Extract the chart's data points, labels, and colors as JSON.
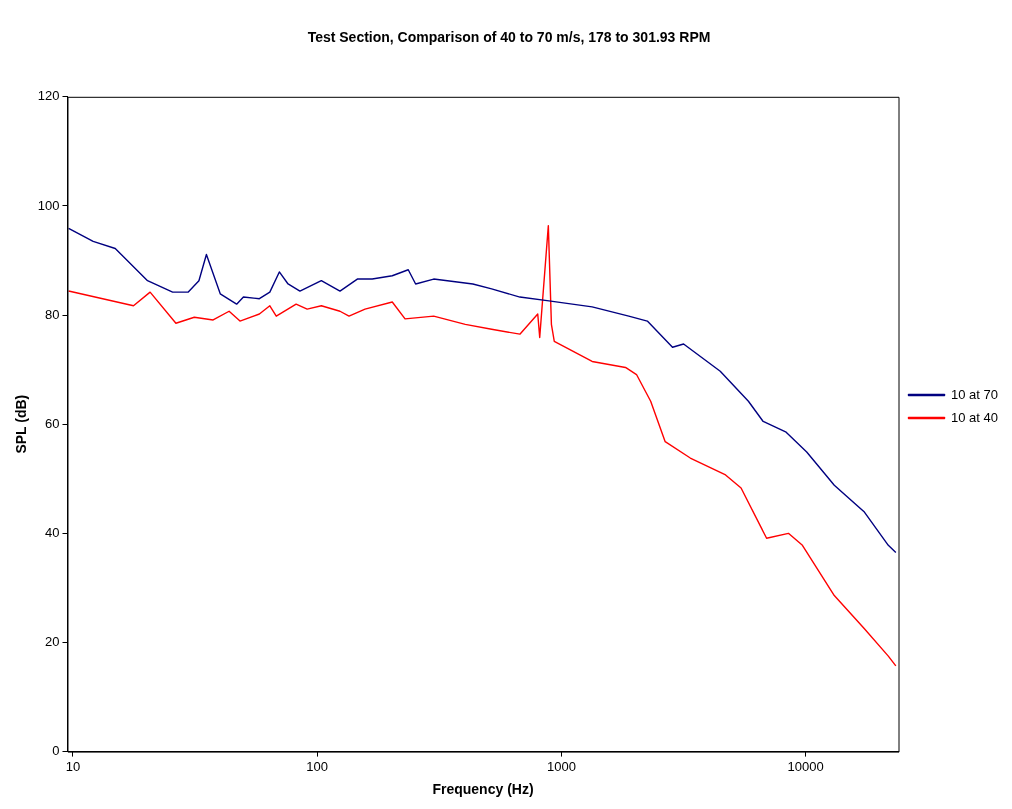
{
  "chart_data": {
    "type": "line",
    "title": "Test Section, Comparison of 40 to 70 m/s, 178 to 301.93 RPM",
    "xlabel": "Frequency (Hz)",
    "ylabel": "SPL (dB)",
    "log": "x",
    "xlim": [
      9.5,
      24000
    ],
    "xticks": [
      10,
      100,
      1000,
      10000
    ],
    "ylim": [
      0,
      120
    ],
    "yticks": [
      0,
      20,
      40,
      60,
      80,
      100,
      120
    ],
    "grid": false,
    "legend": "right",
    "marker": "none",
    "line_style": "solid",
    "series": [
      {
        "name": "10 at 70",
        "color": "#000080",
        "x": [
          9.6,
          12.1,
          14.9,
          20.2,
          25.6,
          29.6,
          32.8,
          35.2,
          40.1,
          46.8,
          49.9,
          58,
          64,
          70,
          76,
          85,
          104,
          124,
          146,
          168,
          203,
          236,
          253,
          300,
          434,
          518,
          676,
          889,
          1336,
          1887,
          2248,
          2850,
          3164,
          4470,
          5830,
          6700,
          8280,
          10100,
          13100,
          17400,
          21800,
          23400
        ],
        "values": [
          95.9,
          93.5,
          92.2,
          86.3,
          84.2,
          84.2,
          86.3,
          91.1,
          83.9,
          82,
          83.3,
          83,
          84.2,
          87.9,
          85.7,
          84.4,
          86.3,
          84.4,
          86.6,
          86.6,
          87.2,
          88.3,
          85.7,
          86.6,
          85.7,
          84.8,
          83.3,
          82.6,
          81.5,
          79.8,
          78.9,
          74.1,
          74.7,
          69.7,
          64.2,
          60.5,
          58.6,
          54.9,
          48.8,
          43.9,
          37.8,
          36.5
        ]
      },
      {
        "name": "10 at 40",
        "color": "#ff0000",
        "x": [
          9.6,
          17.7,
          20.7,
          26.4,
          31.4,
          37.5,
          43.6,
          48.3,
          58,
          64,
          68,
          82,
          91,
          104,
          124,
          135,
          157,
          203,
          229,
          300,
          404,
          518,
          676,
          800,
          815,
          884,
          910,
          935,
          1336,
          1830,
          2030,
          2320,
          2660,
          3370,
          4700,
          5440,
          6920,
          8500,
          9700,
          13100,
          17400,
          21800,
          23400
        ],
        "values": [
          84.4,
          81.7,
          84.2,
          78.5,
          79.6,
          79.1,
          80.7,
          78.9,
          80.2,
          81.7,
          79.8,
          82,
          81.1,
          81.7,
          80.7,
          79.8,
          81.1,
          82.4,
          79.3,
          79.8,
          78.3,
          77.4,
          76.5,
          80.2,
          75.9,
          96.4,
          78.3,
          75.2,
          71.5,
          70.4,
          69.1,
          64.2,
          56.8,
          53.8,
          50.7,
          48.3,
          39.1,
          40,
          37.8,
          28.6,
          22.5,
          17.5,
          15.7
        ]
      }
    ]
  }
}
